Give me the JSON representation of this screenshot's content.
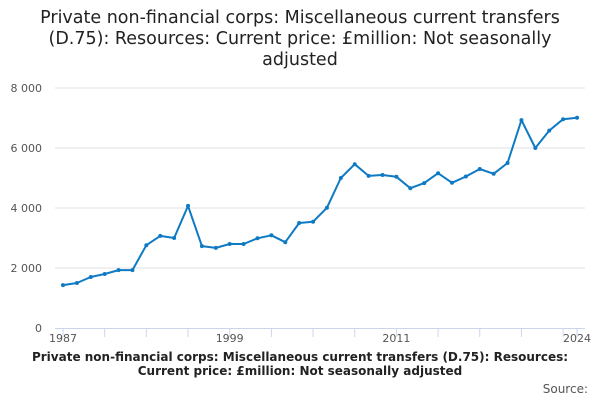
{
  "chart_data": {
    "type": "line",
    "title": "Private non-financial corps: Miscellaneous current transfers (D.75): Resources: Current price: £million: Not seasonally adjusted",
    "xlabel": "",
    "ylabel": "",
    "x": [
      1987,
      1988,
      1989,
      1990,
      1991,
      1992,
      1993,
      1994,
      1995,
      1996,
      1997,
      1998,
      1999,
      2000,
      2001,
      2002,
      2003,
      2004,
      2005,
      2006,
      2007,
      2008,
      2009,
      2010,
      2011,
      2012,
      2013,
      2014,
      2015,
      2016,
      2017,
      2018,
      2019,
      2020,
      2021,
      2022,
      2023,
      2024
    ],
    "series": [
      {
        "name": "Private non-financial corps: Miscellaneous current transfers (D.75)",
        "color": "#0f7ac4",
        "values": [
          1430,
          1500,
          1700,
          1800,
          1930,
          1930,
          2760,
          3070,
          3000,
          4070,
          2730,
          2670,
          2800,
          2800,
          2990,
          3090,
          2860,
          3500,
          3540,
          4010,
          5000,
          5460,
          5070,
          5100,
          5040,
          4660,
          4830,
          5160,
          4840,
          5050,
          5300,
          5140,
          5500,
          6930,
          6000,
          6580,
          6960,
          7010
        ]
      }
    ],
    "ylim": [
      0,
      8000
    ],
    "yticks": [
      0,
      2000,
      4000,
      6000,
      8000
    ],
    "ytick_labels": [
      "0",
      "2 000",
      "4 000",
      "6 000",
      "8 000"
    ],
    "xtick_labels": [
      "1987",
      "1999",
      "2011",
      "2024"
    ],
    "grid": true,
    "legend": "none"
  },
  "caption": "Private non-financial corps: Miscellaneous current transfers (D.75): Resources: Current price: £million: Not seasonally adjusted",
  "source_label": "Source:"
}
